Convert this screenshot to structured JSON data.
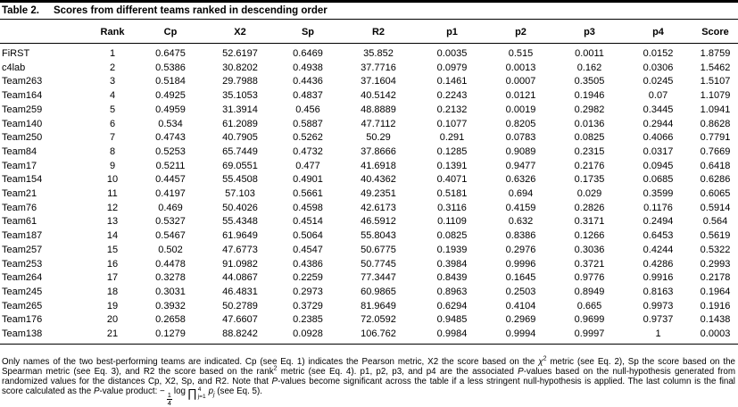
{
  "caption": {
    "label": "Table 2.",
    "title": "Scores from different teams ranked in descending order"
  },
  "table": {
    "columns": [
      "",
      "Rank",
      "Cp",
      "X2",
      "Sp",
      "R2",
      "p1",
      "p2",
      "p3",
      "p4",
      "Score"
    ],
    "rows": [
      [
        "FiRST",
        "1",
        "0.6475",
        "52.6197",
        "0.6469",
        "35.852",
        "0.0035",
        "0.515",
        "0.0011",
        "0.0152",
        "1.8759"
      ],
      [
        "c4lab",
        "2",
        "0.5386",
        "30.8202",
        "0.4938",
        "37.7716",
        "0.0979",
        "0.0013",
        "0.162",
        "0.0306",
        "1.5462"
      ],
      [
        "Team263",
        "3",
        "0.5184",
        "29.7988",
        "0.4436",
        "37.1604",
        "0.1461",
        "0.0007",
        "0.3505",
        "0.0245",
        "1.5107"
      ],
      [
        "Team164",
        "4",
        "0.4925",
        "35.1053",
        "0.4837",
        "40.5142",
        "0.2243",
        "0.0121",
        "0.1946",
        "0.07",
        "1.1079"
      ],
      [
        "Team259",
        "5",
        "0.4959",
        "31.3914",
        "0.456",
        "48.8889",
        "0.2132",
        "0.0019",
        "0.2982",
        "0.3445",
        "1.0941"
      ],
      [
        "Team140",
        "6",
        "0.534",
        "61.2089",
        "0.5887",
        "47.7112",
        "0.1077",
        "0.8205",
        "0.0136",
        "0.2944",
        "0.8628"
      ],
      [
        "Team250",
        "7",
        "0.4743",
        "40.7905",
        "0.5262",
        "50.29",
        "0.291",
        "0.0783",
        "0.0825",
        "0.4066",
        "0.7791"
      ],
      [
        "Team84",
        "8",
        "0.5253",
        "65.7449",
        "0.4732",
        "37.8666",
        "0.1285",
        "0.9089",
        "0.2315",
        "0.0317",
        "0.7669"
      ],
      [
        "Team17",
        "9",
        "0.5211",
        "69.0551",
        "0.477",
        "41.6918",
        "0.1391",
        "0.9477",
        "0.2176",
        "0.0945",
        "0.6418"
      ],
      [
        "Team154",
        "10",
        "0.4457",
        "55.4508",
        "0.4901",
        "40.4362",
        "0.4071",
        "0.6326",
        "0.1735",
        "0.0685",
        "0.6286"
      ],
      [
        "Team21",
        "11",
        "0.4197",
        "57.103",
        "0.5661",
        "49.2351",
        "0.5181",
        "0.694",
        "0.029",
        "0.3599",
        "0.6065"
      ],
      [
        "Team76",
        "12",
        "0.469",
        "50.4026",
        "0.4598",
        "42.6173",
        "0.3116",
        "0.4159",
        "0.2826",
        "0.1176",
        "0.5914"
      ],
      [
        "Team61",
        "13",
        "0.5327",
        "55.4348",
        "0.4514",
        "46.5912",
        "0.1109",
        "0.632",
        "0.3171",
        "0.2494",
        "0.564"
      ],
      [
        "Team187",
        "14",
        "0.5467",
        "61.9649",
        "0.5064",
        "55.8043",
        "0.0825",
        "0.8386",
        "0.1266",
        "0.6453",
        "0.5619"
      ],
      [
        "Team257",
        "15",
        "0.502",
        "47.6773",
        "0.4547",
        "50.6775",
        "0.1939",
        "0.2976",
        "0.3036",
        "0.4244",
        "0.5322"
      ],
      [
        "Team253",
        "16",
        "0.4478",
        "91.0982",
        "0.4386",
        "50.7745",
        "0.3984",
        "0.9996",
        "0.3721",
        "0.4286",
        "0.2993"
      ],
      [
        "Team264",
        "17",
        "0.3278",
        "44.0867",
        "0.2259",
        "77.3447",
        "0.8439",
        "0.1645",
        "0.9776",
        "0.9916",
        "0.2178"
      ],
      [
        "Team245",
        "18",
        "0.3031",
        "46.4831",
        "0.2973",
        "60.9865",
        "0.8963",
        "0.2503",
        "0.8949",
        "0.8163",
        "0.1964"
      ],
      [
        "Team265",
        "19",
        "0.3932",
        "50.2789",
        "0.3729",
        "81.9649",
        "0.6294",
        "0.4104",
        "0.665",
        "0.9973",
        "0.1916"
      ],
      [
        "Team176",
        "20",
        "0.2658",
        "47.6607",
        "0.2385",
        "72.0592",
        "0.9485",
        "0.2969",
        "0.9699",
        "0.9737",
        "0.1438"
      ],
      [
        "Team138",
        "21",
        "0.1279",
        "88.8242",
        "0.0928",
        "106.762",
        "0.9984",
        "0.9994",
        "0.9997",
        "1",
        "0.0003"
      ]
    ]
  },
  "footnote": {
    "parts": [
      {
        "text": "Only names of the two best-performing teams are indicated. Cp (see Eq. 1) indicates the Pearson metric, X2 the score based on the "
      },
      {
        "text": "χ"
      },
      {
        "text": "2"
      },
      {
        "text": " metric (see Eq. 2), Sp the score based on the Spearman metric (see Eq. 3), and R2 the score based on the rank"
      },
      {
        "text": "2"
      },
      {
        "text": " metric (see Eq. 4). p1, p2, p3, and p4 are the associated "
      },
      {
        "text": "P"
      },
      {
        "text": "-values based on the null-hypothesis generated from randomized values for the distances Cp, X2, Sp, and R2. Note that "
      },
      {
        "text": "P"
      },
      {
        "text": "-values become significant across the table if a less stringent null-hypothesis is applied. The last column is the final score calculated as the "
      },
      {
        "text": "P"
      },
      {
        "text": "-value product: "
      },
      {
        "text": " (see Eq. 5)."
      }
    ],
    "formula": {
      "minus": "−",
      "num": "1",
      "den": "4",
      "log": "log",
      "prod": "∏",
      "upper": "4",
      "lower": "j=1",
      "var": "p",
      "varsub": "j"
    }
  }
}
